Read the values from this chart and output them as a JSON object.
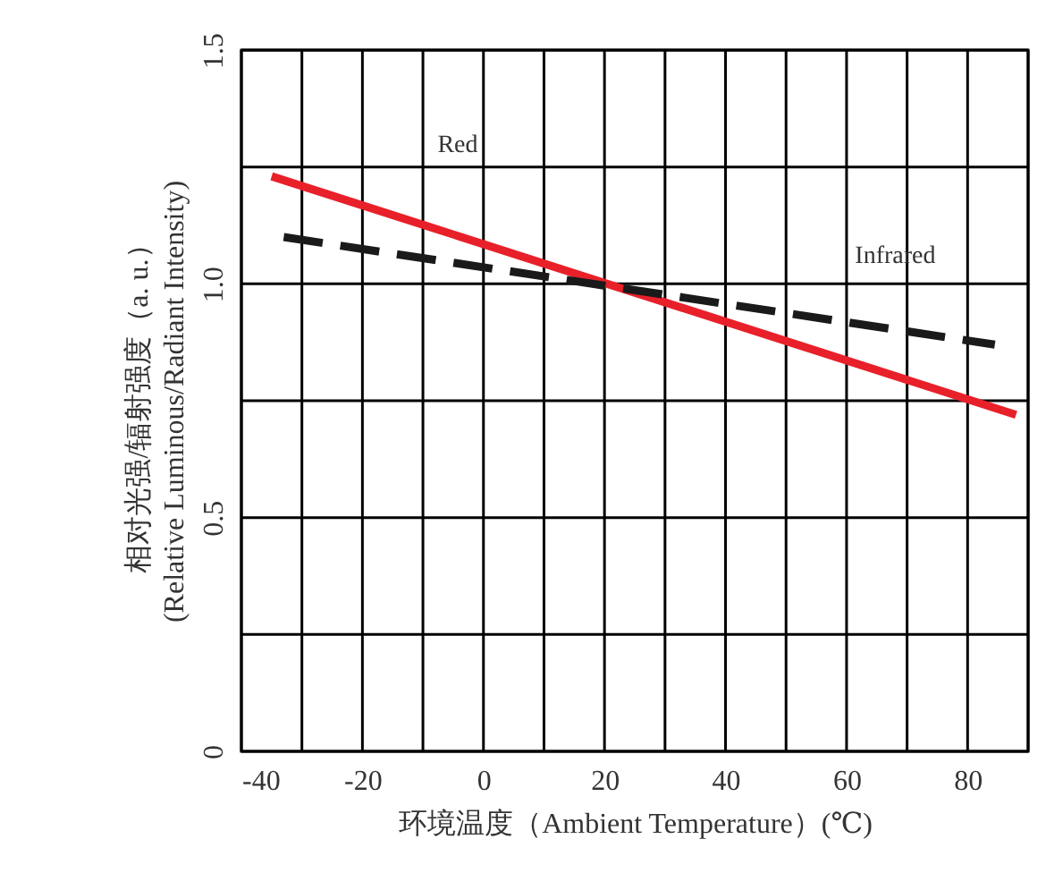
{
  "chart_data": {
    "type": "line",
    "xlabel": "环境温度（Ambient Temperature）(℃)",
    "ylabel": "相对光强/辐射强度（a. u.）\n(Relative Luminous/Radiant Intensity)",
    "xlim": [
      -40,
      90
    ],
    "ylim": [
      0,
      1.5
    ],
    "xticks": [
      -40,
      {
        "value": -30,
        "label": null
      },
      -20,
      {
        "value": -10,
        "label": null
      },
      0,
      {
        "value": 10,
        "label": null
      },
      20,
      {
        "value": 30,
        "label": null
      },
      40,
      {
        "value": 50,
        "label": null
      },
      60,
      {
        "value": 70,
        "label": null
      },
      80,
      {
        "value": 90,
        "label": null
      }
    ],
    "yticks": [
      0,
      {
        "value": 0.25,
        "label": null
      },
      0.5,
      {
        "value": 0.75,
        "label": null
      },
      {
        "value": 1,
        "label": "1.0"
      },
      {
        "value": 1.25,
        "label": null
      },
      1.5
    ],
    "grid": true,
    "series": [
      {
        "name": "Red",
        "color": "#e8202a",
        "line_style": "solid",
        "x": [
          -35,
          88
        ],
        "values": [
          1.23,
          0.72
        ]
      },
      {
        "name": "Infrared",
        "color": "#1a1a1a",
        "line_style": "dashed",
        "x": [
          -33,
          84.5
        ],
        "values": [
          1.1,
          0.87
        ]
      }
    ]
  }
}
